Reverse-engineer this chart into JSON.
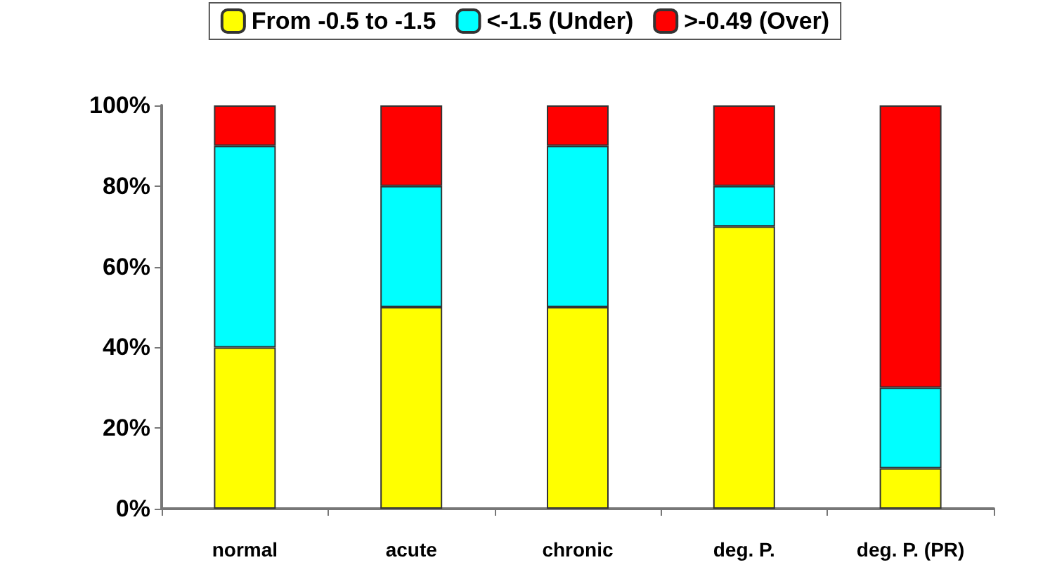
{
  "chart_data": {
    "type": "bar",
    "stacked": true,
    "categories": [
      "normal",
      "acute",
      "chronic",
      "deg. P.",
      "deg. P. (PR)"
    ],
    "series": [
      {
        "name": "From -0.5 to -1.5",
        "color": "#ffff00",
        "values": [
          40,
          50,
          50,
          70,
          10
        ]
      },
      {
        "name": "<-1.5 (Under)",
        "color": "#00ffff",
        "values": [
          50,
          30,
          40,
          10,
          20
        ]
      },
      {
        "name": ">-0.49 (Over)",
        "color": "#ff0000",
        "values": [
          10,
          20,
          10,
          20,
          70
        ]
      }
    ],
    "ylim": [
      0,
      100
    ],
    "yticks": [
      {
        "value": 0,
        "label": "0%"
      },
      {
        "value": 20,
        "label": "20%"
      },
      {
        "value": 40,
        "label": "40%"
      },
      {
        "value": 60,
        "label": "60%"
      },
      {
        "value": 80,
        "label": "80%"
      },
      {
        "value": 100,
        "label": "100%"
      }
    ],
    "grid": false,
    "legend": "top"
  }
}
